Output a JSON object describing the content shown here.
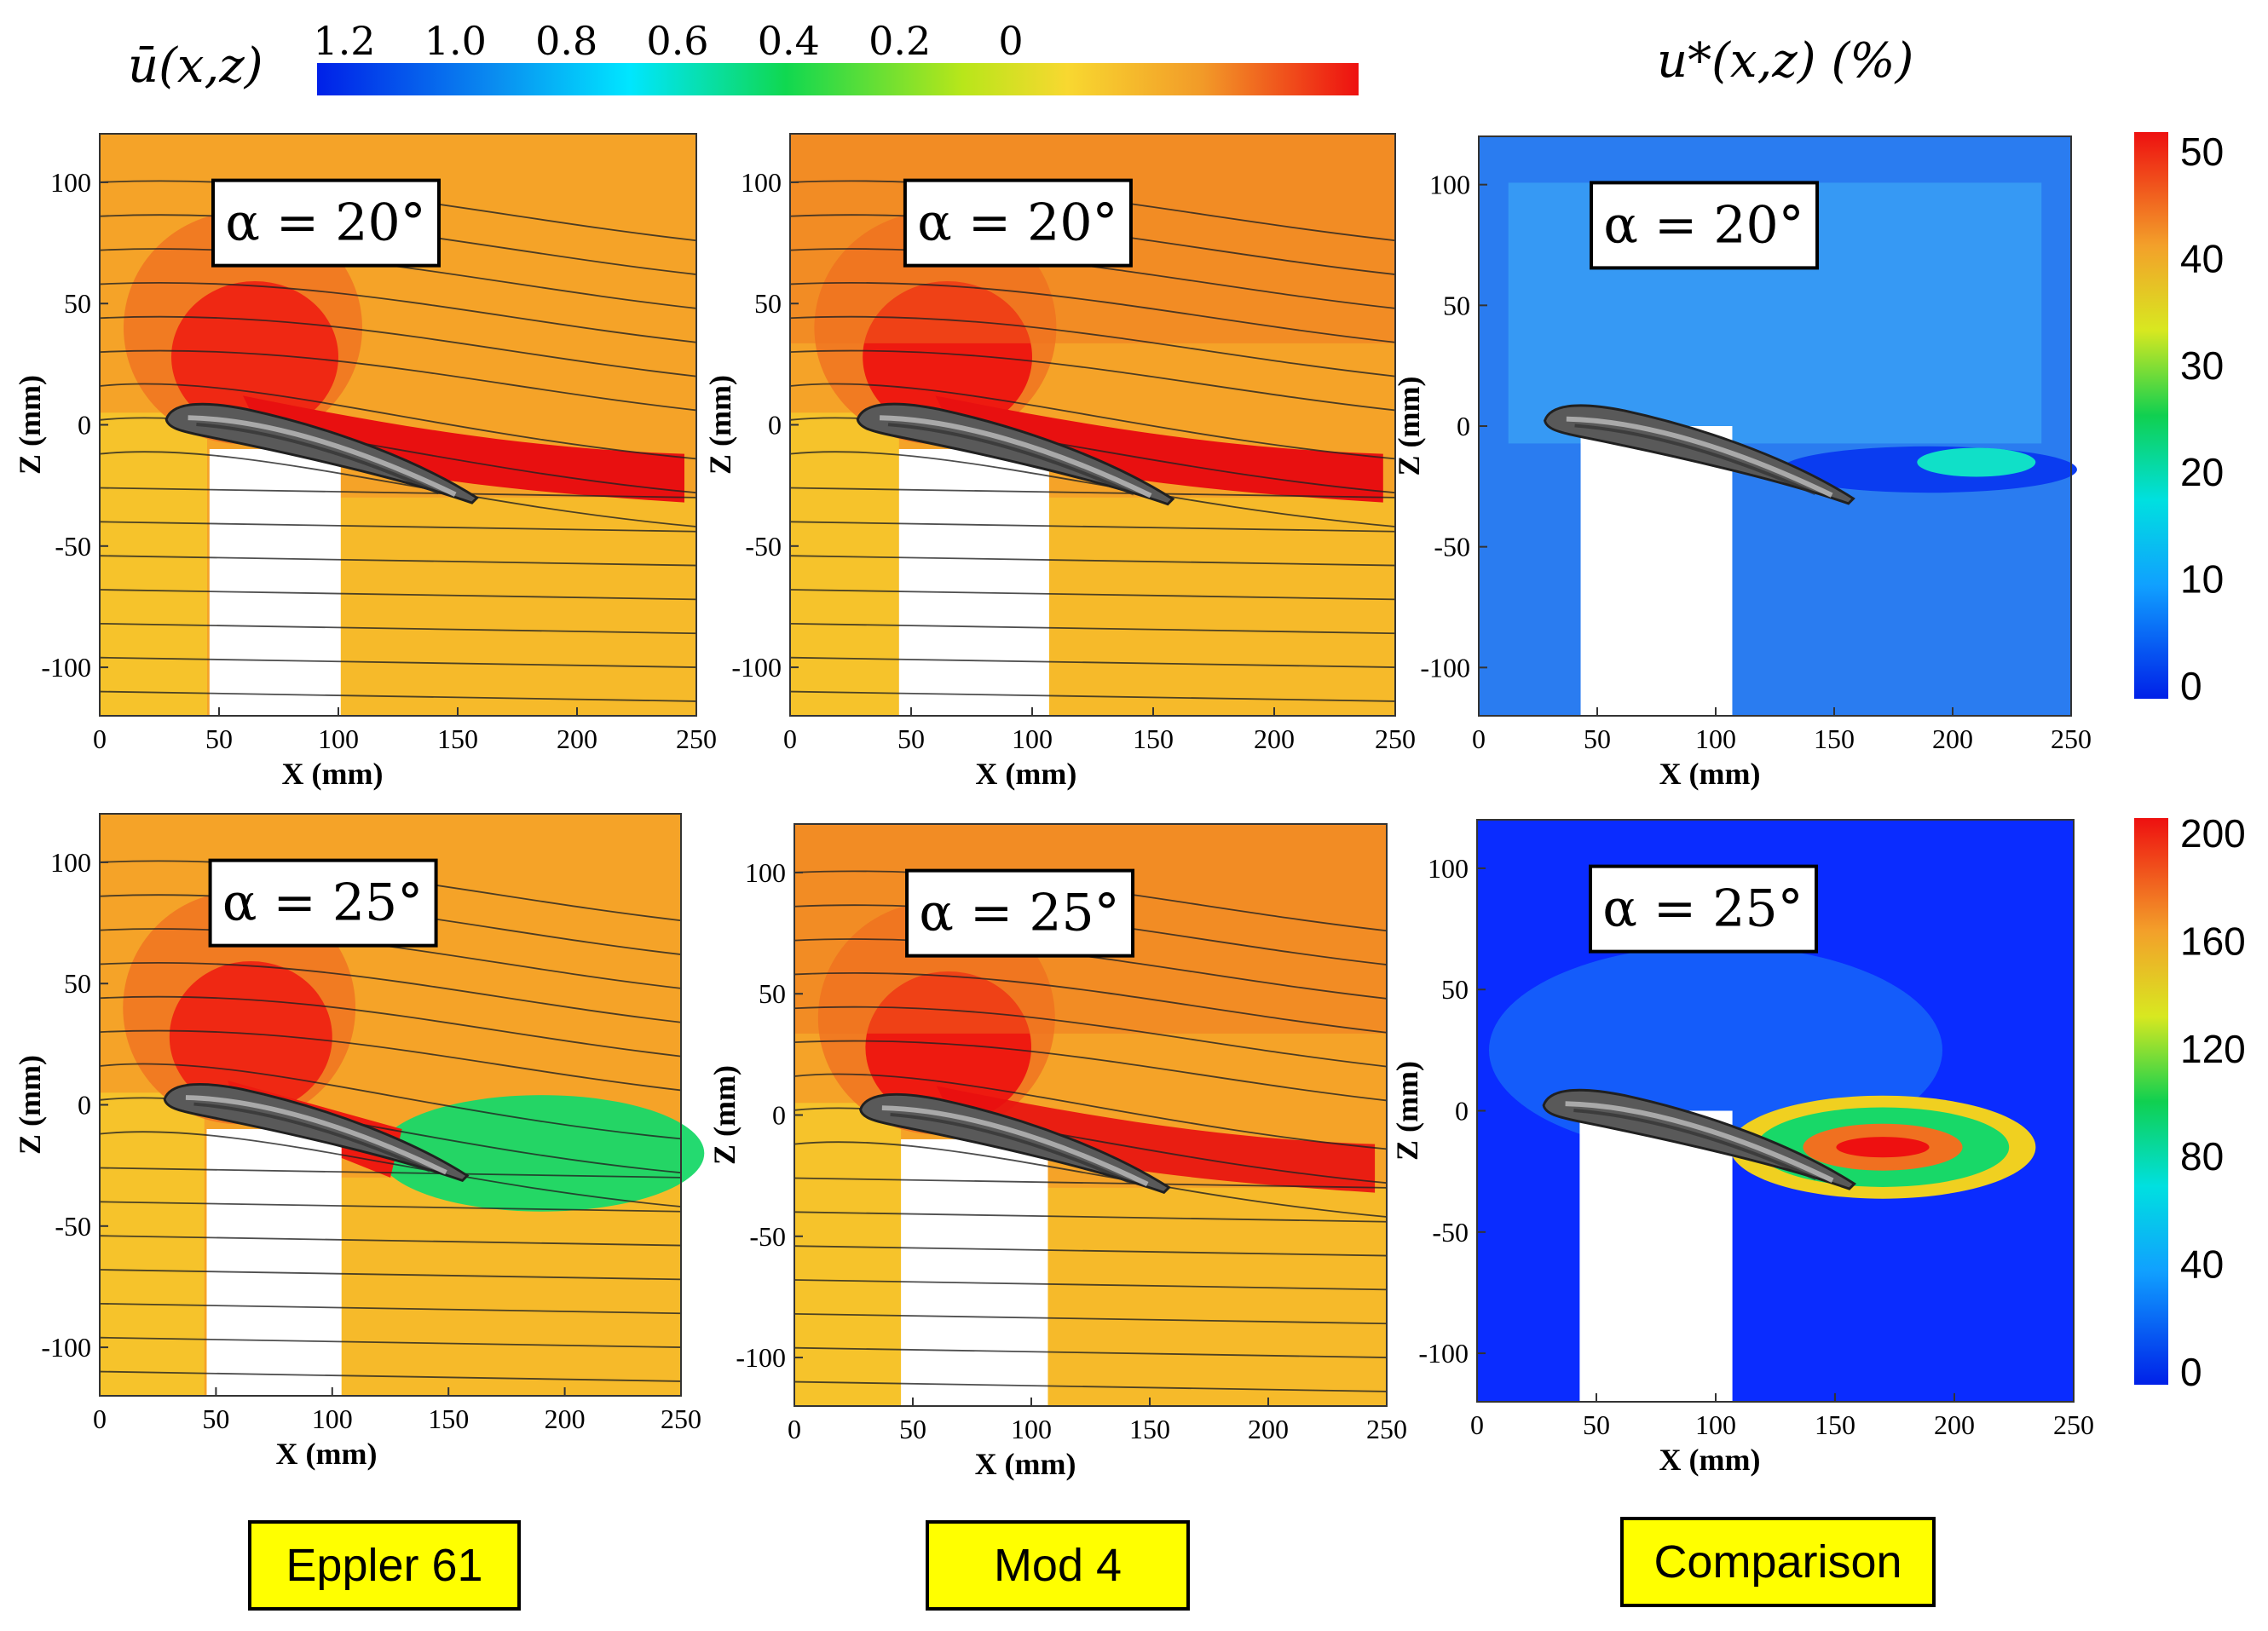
{
  "colorbars": {
    "velocity": {
      "symbol": "ū(x,z)",
      "ticks": [
        "1.2",
        "1.0",
        "0.8",
        "0.6",
        "0.4",
        "0.2",
        "0"
      ]
    },
    "comparison": {
      "symbol": "u*(x,z) (%)",
      "ticks_row1": [
        "50",
        "40",
        "30",
        "20",
        "10",
        "0"
      ],
      "ticks_row2": [
        "200",
        "160",
        "120",
        "80",
        "40",
        "0"
      ]
    }
  },
  "captions": [
    "Eppler 61",
    "Mod 4",
    "Comparison"
  ],
  "chart_data": [
    {
      "type": "heatmap",
      "title": "α = 20°",
      "column": "Eppler 61",
      "xlabel": "X (mm)",
      "ylabel": "Z (mm)",
      "xlim": [
        0,
        250
      ],
      "ylim": [
        -120,
        120
      ],
      "xticks": [
        "0",
        "50",
        "100",
        "150",
        "200",
        "250"
      ],
      "yticks": [
        "100",
        "50",
        "0",
        "-50",
        "-100"
      ],
      "colormap": "velocity",
      "field": "streamlines"
    },
    {
      "type": "heatmap",
      "title": "α = 20°",
      "column": "Mod 4",
      "xlabel": "X (mm)",
      "ylabel": "Z (mm)",
      "xlim": [
        0,
        250
      ],
      "ylim": [
        -120,
        120
      ],
      "xticks": [
        "0",
        "50",
        "100",
        "150",
        "200",
        "250"
      ],
      "yticks": [
        "100",
        "50",
        "0",
        "-50",
        "-100"
      ],
      "colormap": "velocity",
      "field": "streamlines"
    },
    {
      "type": "heatmap",
      "title": "α = 20°",
      "column": "Comparison",
      "xlabel": "X (mm)",
      "ylabel": "Z (mm)",
      "xlim": [
        0,
        250
      ],
      "ylim": [
        -120,
        120
      ],
      "xticks": [
        "0",
        "50",
        "100",
        "150",
        "200",
        "250"
      ],
      "yticks": [
        "100",
        "50",
        "0",
        "-50",
        "-100"
      ],
      "colormap": "percent",
      "crange": [
        0,
        50
      ]
    },
    {
      "type": "heatmap",
      "title": "α = 25°",
      "column": "Eppler 61",
      "xlabel": "X (mm)",
      "ylabel": "Z (mm)",
      "xlim": [
        0,
        250
      ],
      "ylim": [
        -120,
        120
      ],
      "xticks": [
        "0",
        "50",
        "100",
        "150",
        "200",
        "250"
      ],
      "yticks": [
        "100",
        "50",
        "0",
        "-50",
        "-100"
      ],
      "colormap": "velocity",
      "field": "streamlines"
    },
    {
      "type": "heatmap",
      "title": "α = 25°",
      "column": "Mod 4",
      "xlabel": "X (mm)",
      "ylabel": "Z (mm)",
      "xlim": [
        0,
        250
      ],
      "ylim": [
        -120,
        120
      ],
      "xticks": [
        "0",
        "50",
        "100",
        "150",
        "200",
        "250"
      ],
      "yticks": [
        "100",
        "50",
        "0",
        "-50",
        "-100"
      ],
      "colormap": "velocity",
      "field": "streamlines"
    },
    {
      "type": "heatmap",
      "title": "α = 25°",
      "column": "Comparison",
      "xlabel": "X (mm)",
      "ylabel": "Z (mm)",
      "xlim": [
        0,
        250
      ],
      "ylim": [
        -120,
        120
      ],
      "xticks": [
        "0",
        "50",
        "100",
        "150",
        "200",
        "250"
      ],
      "yticks": [
        "100",
        "50",
        "0",
        "-50",
        "-100"
      ],
      "colormap": "percent",
      "crange": [
        0,
        200
      ]
    }
  ]
}
